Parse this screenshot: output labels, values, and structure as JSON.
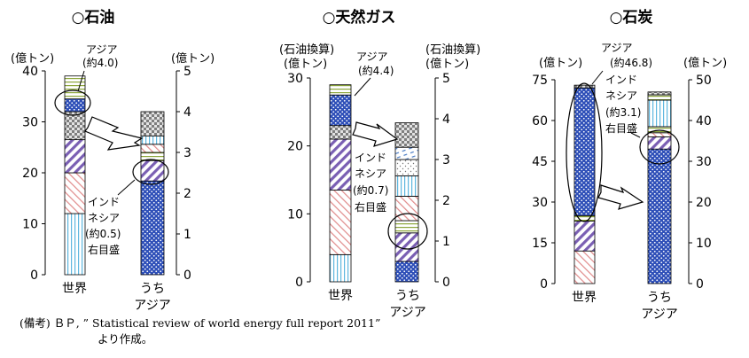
{
  "chart_data": [
    {
      "type": "bar",
      "stacked": true,
      "title": "○石油",
      "categories": [
        "世界",
        "うち\nアジア"
      ],
      "left_axis": {
        "label": [
          "(億トン)"
        ],
        "ylim": [
          0,
          40
        ],
        "ticks": [
          0,
          10,
          20,
          30,
          40
        ]
      },
      "right_axis": {
        "label": [
          "(億トン)"
        ],
        "ylim": [
          0,
          5
        ],
        "ticks": [
          0,
          1,
          2,
          3,
          4,
          5
        ]
      },
      "world_segments": [
        {
          "pattern": "vlines",
          "value": 12
        },
        {
          "pattern": "diag",
          "value": 8
        },
        {
          "pattern": "hatch",
          "value": 6.5
        },
        {
          "pattern": "checker",
          "value": 5.5
        },
        {
          "pattern": "dots",
          "value": 2.5
        },
        {
          "pattern": "hlines",
          "value": 4.5
        }
      ],
      "asia_segments": [
        {
          "pattern": "dots",
          "value": 2.3
        },
        {
          "pattern": "hatch",
          "value": 0.5
        },
        {
          "pattern": "hlines",
          "value": 0.2
        },
        {
          "pattern": "diag",
          "value": 0.2
        },
        {
          "pattern": "vlines",
          "value": 0.2
        },
        {
          "pattern": "checker",
          "value": 0.6
        }
      ],
      "annotations": {
        "asia": [
          "アジア",
          "(約4.0)"
        ],
        "indonesia": [
          "インド",
          "ネシア",
          "(約0.5)",
          "右目盛"
        ]
      }
    },
    {
      "type": "bar",
      "stacked": true,
      "title": "○天然ガス",
      "categories": [
        "世界",
        "うち\nアジア"
      ],
      "left_axis": {
        "label": [
          "(石油換算)",
          "(億トン)"
        ],
        "ylim": [
          0,
          30
        ],
        "ticks": [
          0,
          10,
          20,
          30
        ]
      },
      "right_axis": {
        "label": [
          "(石油換算)",
          "(億トン)"
        ],
        "ylim": [
          0,
          5
        ],
        "ticks": [
          0,
          1,
          2,
          3,
          4,
          5
        ]
      },
      "world_segments": [
        {
          "pattern": "vlines",
          "value": 4
        },
        {
          "pattern": "diag",
          "value": 9.5
        },
        {
          "pattern": "hatch",
          "value": 7.5
        },
        {
          "pattern": "checker",
          "value": 2
        },
        {
          "pattern": "dots",
          "value": 4.5
        },
        {
          "pattern": "hlines",
          "value": 1.5
        }
      ],
      "asia_segments": [
        {
          "pattern": "dots",
          "value": 0.5
        },
        {
          "pattern": "hatch",
          "value": 0.7
        },
        {
          "pattern": "hlines",
          "value": 0.3
        },
        {
          "pattern": "diag",
          "value": 0.6
        },
        {
          "pattern": "vlines",
          "value": 0.5
        },
        {
          "pattern": "stipple",
          "value": 0.4
        },
        {
          "pattern": "dashes",
          "value": 0.3
        },
        {
          "pattern": "checker",
          "value": 0.6
        }
      ],
      "annotations": {
        "asia": [
          "アジア",
          "(約4.4)"
        ],
        "indonesia": [
          "インド",
          "ネシア",
          "(約0.7)",
          "右目盛"
        ]
      }
    },
    {
      "type": "bar",
      "stacked": true,
      "title": "○石炭",
      "categories": [
        "世界",
        "うち\nアジア"
      ],
      "left_axis": {
        "label": [
          "(億トン)"
        ],
        "ylim": [
          0,
          75
        ],
        "ticks": [
          0,
          15,
          30,
          45,
          60,
          75
        ]
      },
      "right_axis": {
        "label": [
          "(億トン)"
        ],
        "ylim": [
          0,
          50
        ],
        "ticks": [
          0,
          10,
          20,
          30,
          40,
          50
        ]
      },
      "world_segments": [
        {
          "pattern": "diag",
          "value": 12
        },
        {
          "pattern": "hatch",
          "value": 11
        },
        {
          "pattern": "hlines",
          "value": 2
        },
        {
          "pattern": "dots",
          "value": 47
        },
        {
          "pattern": "checker",
          "value": 1
        }
      ],
      "asia_segments": [
        {
          "pattern": "dots",
          "value": 33
        },
        {
          "pattern": "hatch",
          "value": 3
        },
        {
          "pattern": "diag",
          "value": 1
        },
        {
          "pattern": "hlines",
          "value": 1.5
        },
        {
          "pattern": "vlines",
          "value": 6.5
        },
        {
          "pattern": "hlines",
          "value": 1.3
        },
        {
          "pattern": "checker",
          "value": 0.7
        }
      ],
      "annotations": {
        "asia": [
          "アジア",
          "(約46.8)"
        ],
        "indonesia": [
          "インド",
          "ネシア",
          "(約3.1)",
          "右目盛"
        ]
      }
    }
  ],
  "note": {
    "line1": "(備考) ＢＰ, ” Statistical review of world energy full report 2011”",
    "line2": "より作成。"
  }
}
